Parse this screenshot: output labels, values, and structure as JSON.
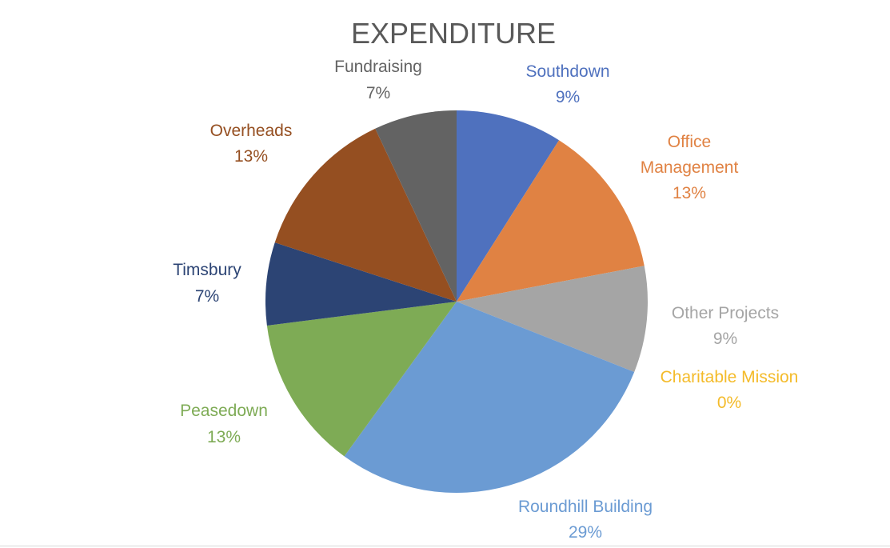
{
  "chart_data": {
    "type": "pie",
    "title": "EXPENDITURE",
    "slices": [
      {
        "name": "Southdown",
        "label": "Southdown",
        "percent_label": "9%",
        "value": 9,
        "color": "#4f71be"
      },
      {
        "name": "Office Management",
        "label": "Office Management",
        "percent_label": "13%",
        "value": 13,
        "color": "#e08243"
      },
      {
        "name": "Other Projects",
        "label": "Other Projects",
        "percent_label": "9%",
        "value": 9,
        "color": "#a5a5a5"
      },
      {
        "name": "Charitable Mission",
        "label": "Charitable Mission",
        "percent_label": "0%",
        "value": 0,
        "color": "#f4bb2a"
      },
      {
        "name": "Roundhill Building",
        "label": "Roundhill Building",
        "percent_label": "29%",
        "value": 29,
        "color": "#6b9bd3"
      },
      {
        "name": "Peasedown",
        "label": "Peasedown",
        "percent_label": "13%",
        "value": 13,
        "color": "#7eab55"
      },
      {
        "name": "Timsbury",
        "label": "Timsbury",
        "percent_label": "7%",
        "value": 7,
        "color": "#2c4474"
      },
      {
        "name": "Overheads",
        "label": "Overheads",
        "percent_label": "13%",
        "value": 13,
        "color": "#954f21"
      },
      {
        "name": "Fundraising",
        "label": "Fundraising",
        "percent_label": "7%",
        "value": 7,
        "color": "#636363"
      }
    ]
  }
}
